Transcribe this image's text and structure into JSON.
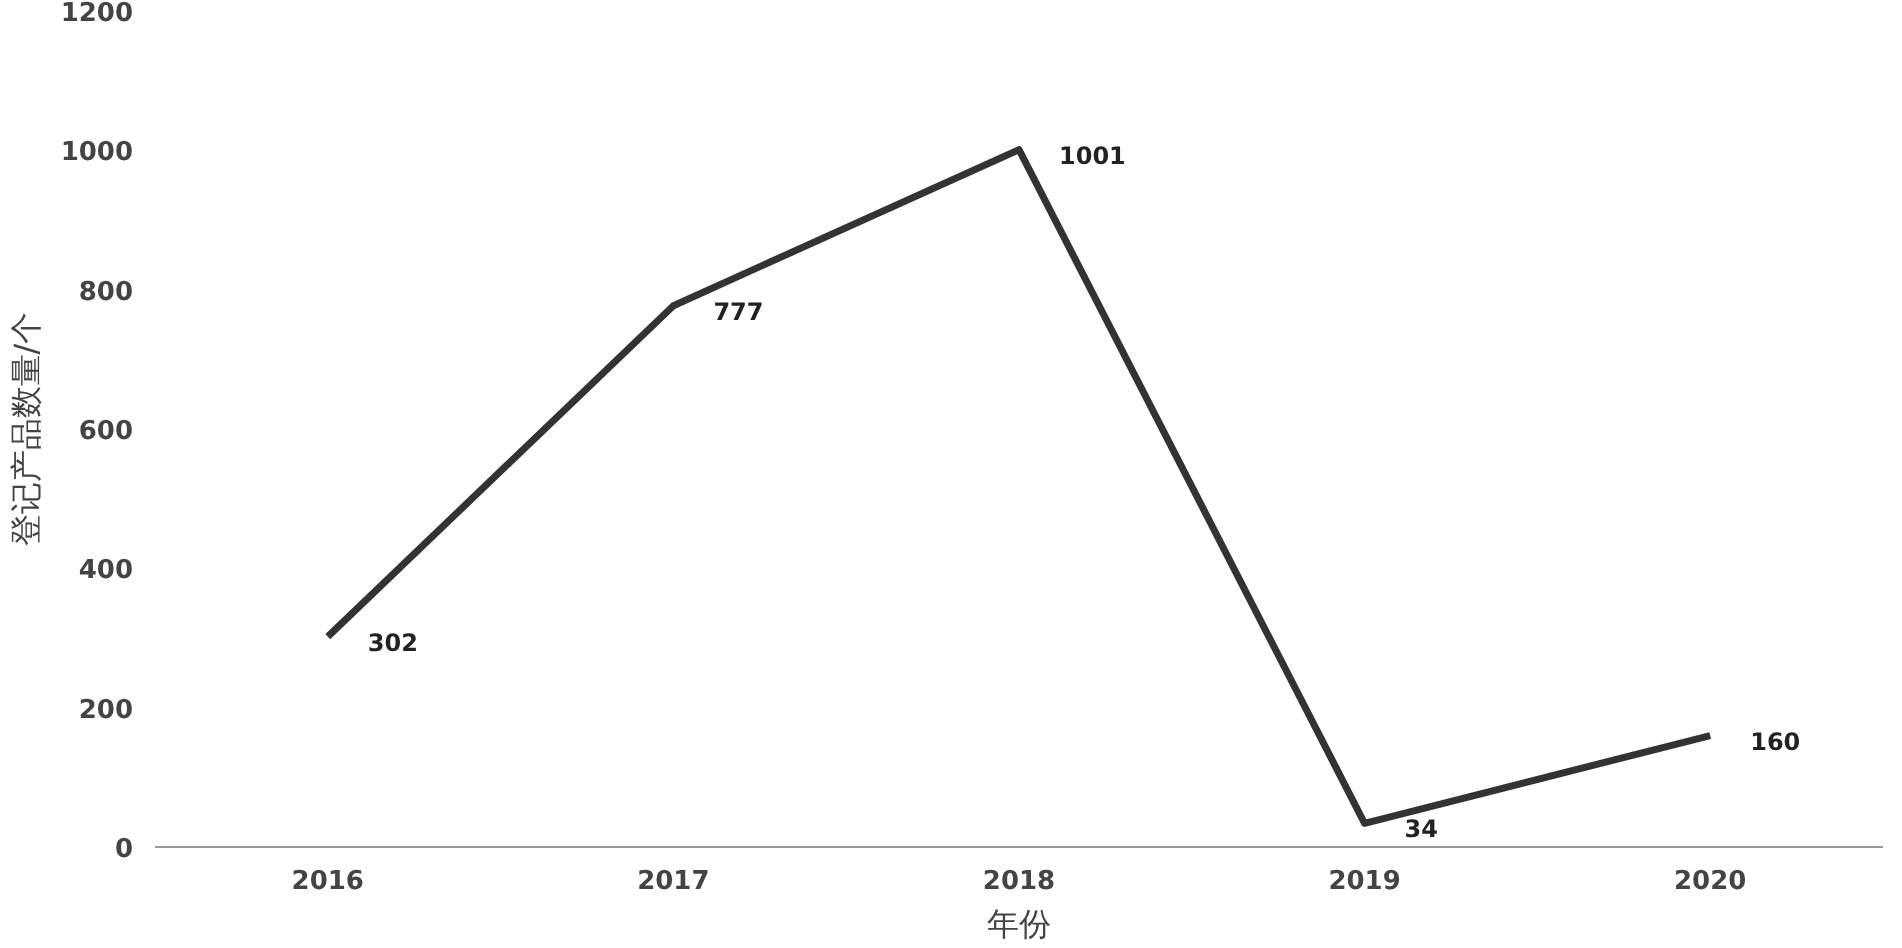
{
  "chart_data": {
    "type": "line",
    "xlabel": "年份",
    "ylabel": "登记产品数量/个",
    "categories": [
      "2016",
      "2017",
      "2018",
      "2019",
      "2020"
    ],
    "series": [
      {
        "color": "#333333",
        "values": [
          302,
          777,
          1001,
          34,
          160
        ]
      }
    ],
    "ylim": [
      0,
      1200
    ],
    "yticks": [
      0,
      200,
      400,
      600,
      800,
      1000,
      1200
    ],
    "data_labels": true,
    "grid": false,
    "marker": "none",
    "line_style": "solid"
  }
}
